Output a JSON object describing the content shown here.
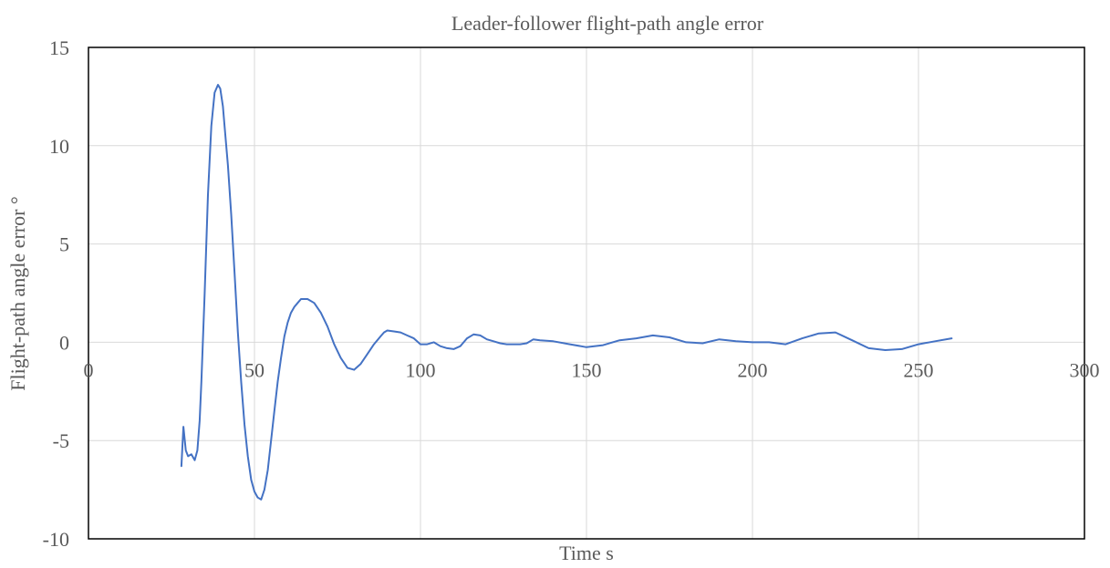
{
  "chart_data": {
    "type": "line",
    "title": "Leader-follower flight-path angle error",
    "xlabel": "Time s",
    "ylabel": "Flight-path angle error °",
    "xlim": [
      0,
      300
    ],
    "ylim": [
      -10,
      15
    ],
    "xticks": [
      0,
      50,
      100,
      150,
      200,
      250,
      300
    ],
    "yticks": [
      -10,
      -5,
      0,
      5,
      10,
      15
    ],
    "grid": true,
    "legend": "none",
    "color": "#4472c4",
    "series": [
      {
        "x": [
          28,
          28.6,
          29.3,
          30,
          31,
          32,
          32.8,
          33.5,
          34,
          35,
          36,
          37,
          38,
          39,
          39.7,
          40.5,
          41,
          42,
          43,
          44,
          45,
          46,
          47,
          48,
          49,
          50,
          51,
          52,
          53,
          54,
          55,
          56,
          57,
          58,
          59,
          60,
          61,
          62,
          63,
          64,
          66,
          68,
          70,
          72,
          74,
          76,
          78,
          80,
          82,
          84,
          86,
          88,
          89,
          90,
          92,
          94,
          96,
          98,
          100,
          102,
          104,
          106,
          108,
          110,
          112,
          114,
          116,
          118,
          120,
          122,
          124,
          126,
          128,
          130,
          132,
          134,
          136,
          140,
          145,
          150,
          155,
          160,
          165,
          170,
          175,
          180,
          185,
          190,
          195,
          200,
          205,
          210,
          215,
          220,
          225,
          230,
          235,
          240,
          245,
          250,
          255,
          260
        ],
        "y": [
          -6.3,
          -4.3,
          -5.5,
          -5.8,
          -5.7,
          -6.0,
          -5.5,
          -4.0,
          -2.0,
          2.5,
          7.5,
          11.0,
          12.7,
          13.1,
          12.9,
          12.0,
          11.0,
          9.0,
          6.5,
          3.5,
          0.5,
          -2.0,
          -4.2,
          -5.8,
          -7.0,
          -7.6,
          -7.9,
          -8.0,
          -7.5,
          -6.5,
          -5.0,
          -3.5,
          -2.0,
          -0.8,
          0.3,
          1.0,
          1.5,
          1.8,
          2.0,
          2.2,
          2.2,
          2.0,
          1.5,
          0.8,
          -0.1,
          -0.8,
          -1.3,
          -1.4,
          -1.1,
          -0.6,
          -0.1,
          0.3,
          0.5,
          0.6,
          0.55,
          0.5,
          0.35,
          0.2,
          -0.1,
          -0.1,
          0.0,
          -0.2,
          -0.3,
          -0.35,
          -0.2,
          0.2,
          0.4,
          0.35,
          0.15,
          0.05,
          -0.05,
          -0.1,
          -0.1,
          -0.1,
          -0.05,
          0.15,
          0.1,
          0.05,
          -0.1,
          -0.25,
          -0.15,
          0.1,
          0.2,
          0.35,
          0.25,
          0.0,
          -0.05,
          0.15,
          0.05,
          0.0,
          0.0,
          -0.1,
          0.2,
          0.45,
          0.5,
          0.1,
          -0.3,
          -0.4,
          -0.35,
          -0.1,
          0.05,
          0.2
        ]
      }
    ]
  }
}
